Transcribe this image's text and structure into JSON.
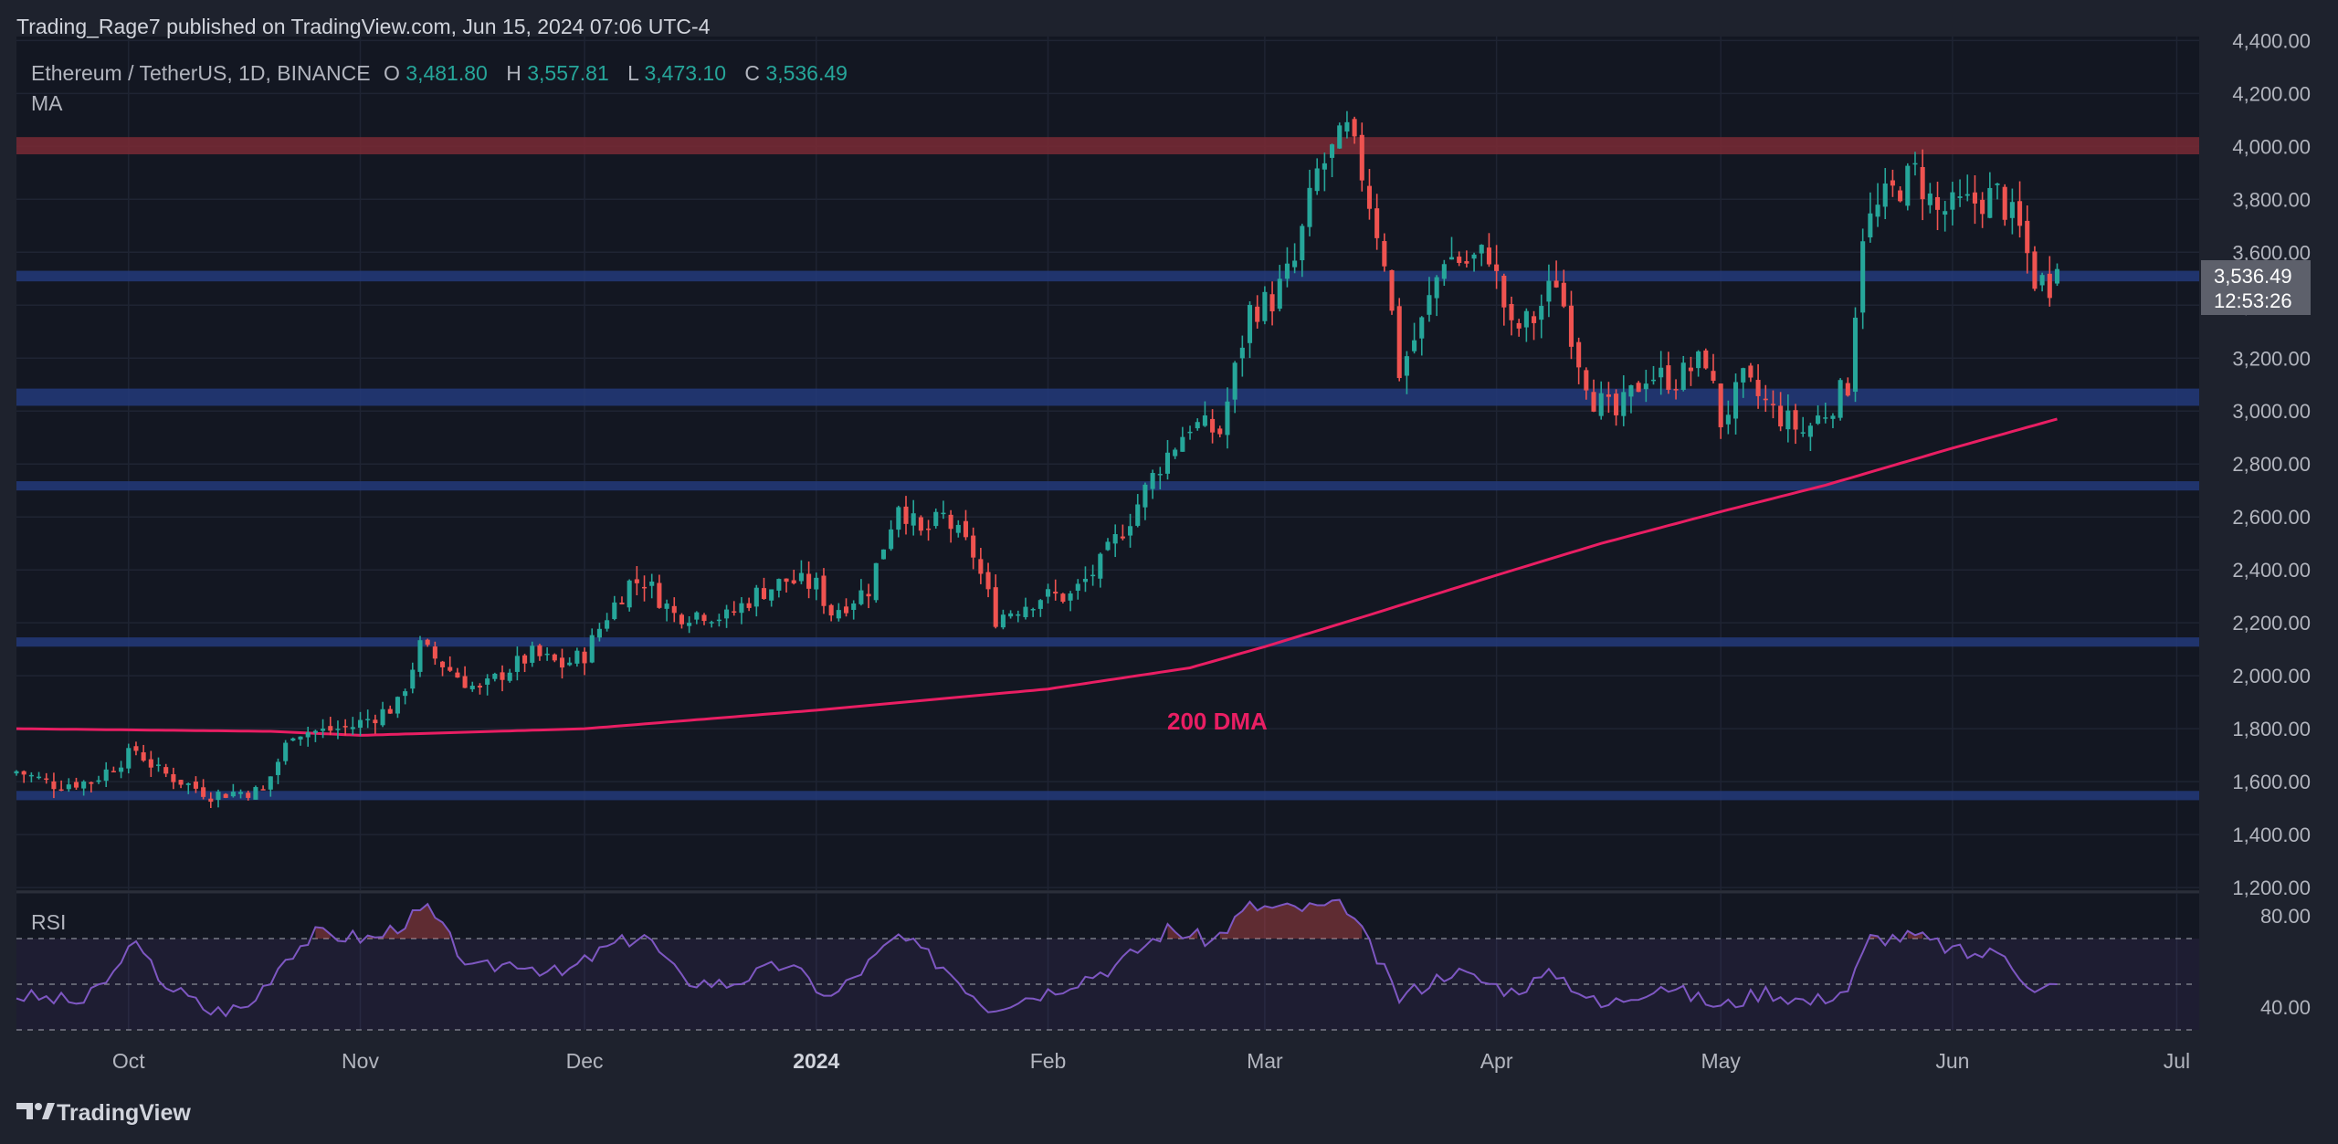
{
  "header": {
    "publisher": "Trading_Rage7 published on TradingView.com, Jun 15, 2024 07:06 UTC-4"
  },
  "legend": {
    "symbol": "Ethereum / TetherUS, 1D, BINANCE",
    "o_label": "O",
    "o_value": "3,481.80",
    "h_label": "H",
    "h_value": "3,557.81",
    "l_label": "L",
    "l_value": "3,473.10",
    "c_label": "C",
    "c_value": "3,536.49",
    "indicator": "MA"
  },
  "price_badge": {
    "price": "3,536.49",
    "countdown": "12:53:26"
  },
  "annotation": "200 DMA",
  "rsi_label": "RSI",
  "footer": {
    "brand": "TradingView"
  },
  "colors": {
    "background": "#131722",
    "frame": "#1e222d",
    "up": "#26a69a",
    "down": "#ef5350",
    "ma": "#e91e63",
    "rsi": "#7e57c2",
    "resistance_zone": "#7a2a35",
    "support_zone": "#233a7a"
  },
  "chart_data": [
    {
      "type": "candlestick",
      "title": "Ethereum / TetherUS, 1D, BINANCE",
      "x_range": [
        "2023-09-16",
        "2024-07-04"
      ],
      "x_ticks": [
        {
          "date": "2023-10-01",
          "label": "Oct"
        },
        {
          "date": "2023-11-01",
          "label": "Nov"
        },
        {
          "date": "2023-12-01",
          "label": "Dec"
        },
        {
          "date": "2024-01-01",
          "label": "2024",
          "bold": true
        },
        {
          "date": "2024-02-01",
          "label": "Feb"
        },
        {
          "date": "2024-03-01",
          "label": "Mar"
        },
        {
          "date": "2024-04-01",
          "label": "Apr"
        },
        {
          "date": "2024-05-01",
          "label": "May"
        },
        {
          "date": "2024-06-01",
          "label": "Jun"
        },
        {
          "date": "2024-07-01",
          "label": "Jul"
        }
      ],
      "y_range": [
        1190,
        4415
      ],
      "y_ticks": [
        "1,200.00",
        "1,400.00",
        "1,600.00",
        "1,800.00",
        "2,000.00",
        "2,200.00",
        "2,400.00",
        "2,600.00",
        "2,800.00",
        "3,000.00",
        "3,200.00",
        "3,400.00",
        "3,600.00",
        "3,800.00",
        "4,000.00",
        "4,200.00",
        "4,400.00"
      ],
      "y_tick_values": [
        1200,
        1400,
        1600,
        1800,
        2000,
        2200,
        2400,
        2600,
        2800,
        3000,
        3200,
        3400,
        3600,
        3800,
        4000,
        4200,
        4400
      ],
      "grid": true,
      "zones": [
        {
          "type": "resistance",
          "low": 3970,
          "high": 4035
        },
        {
          "type": "support",
          "low": 3490,
          "high": 3530
        },
        {
          "type": "support",
          "low": 3020,
          "high": 3085
        },
        {
          "type": "support",
          "low": 2700,
          "high": 2735
        },
        {
          "type": "support",
          "low": 2110,
          "high": 2145
        },
        {
          "type": "support",
          "low": 1530,
          "high": 1565
        }
      ],
      "close_waypoints": [
        [
          "2023-09-16",
          1640
        ],
        [
          "2023-09-21",
          1590
        ],
        [
          "2023-09-26",
          1600
        ],
        [
          "2023-09-30",
          1680
        ],
        [
          "2023-10-02",
          1720
        ],
        [
          "2023-10-05",
          1640
        ],
        [
          "2023-10-12",
          1550
        ],
        [
          "2023-10-15",
          1560
        ],
        [
          "2023-10-19",
          1565
        ],
        [
          "2023-10-23",
          1790
        ],
        [
          "2023-10-27",
          1790
        ],
        [
          "2023-10-31",
          1810
        ],
        [
          "2023-11-06",
          1890
        ],
        [
          "2023-11-09",
          2110
        ],
        [
          "2023-11-14",
          2000
        ],
        [
          "2023-11-17",
          1940
        ],
        [
          "2023-11-20",
          2010
        ],
        [
          "2023-11-24",
          2080
        ],
        [
          "2023-11-28",
          2040
        ],
        [
          "2023-12-01",
          2080
        ],
        [
          "2023-12-04",
          2230
        ],
        [
          "2023-12-07",
          2350
        ],
        [
          "2023-12-09",
          2360
        ],
        [
          "2023-12-13",
          2230
        ],
        [
          "2023-12-17",
          2240
        ],
        [
          "2023-12-20",
          2220
        ],
        [
          "2023-12-24",
          2310
        ],
        [
          "2023-12-28",
          2360
        ],
        [
          "2024-01-01",
          2340
        ],
        [
          "2024-01-03",
          2240
        ],
        [
          "2024-01-08",
          2330
        ],
        [
          "2024-01-12",
          2660
        ],
        [
          "2024-01-15",
          2530
        ],
        [
          "2024-01-18",
          2600
        ],
        [
          "2024-01-22",
          2460
        ],
        [
          "2024-01-25",
          2220
        ],
        [
          "2024-01-28",
          2260
        ],
        [
          "2024-01-31",
          2300
        ],
        [
          "2024-02-04",
          2300
        ],
        [
          "2024-02-08",
          2420
        ],
        [
          "2024-02-12",
          2600
        ],
        [
          "2024-02-16",
          2800
        ],
        [
          "2024-02-20",
          2950
        ],
        [
          "2024-02-24",
          2920
        ],
        [
          "2024-02-28",
          3380
        ],
        [
          "2024-03-02",
          3420
        ],
        [
          "2024-03-05",
          3560
        ],
        [
          "2024-03-08",
          3900
        ],
        [
          "2024-03-12",
          4050
        ],
        [
          "2024-03-14",
          3900
        ],
        [
          "2024-03-17",
          3580
        ],
        [
          "2024-03-19",
          3150
        ],
        [
          "2024-03-22",
          3330
        ],
        [
          "2024-03-25",
          3590
        ],
        [
          "2024-03-28",
          3560
        ],
        [
          "2024-03-31",
          3600
        ],
        [
          "2024-04-03",
          3300
        ],
        [
          "2024-04-06",
          3350
        ],
        [
          "2024-04-09",
          3500
        ],
        [
          "2024-04-12",
          3200
        ],
        [
          "2024-04-14",
          3050
        ],
        [
          "2024-04-17",
          2980
        ],
        [
          "2024-04-21",
          3140
        ],
        [
          "2024-04-25",
          3120
        ],
        [
          "2024-04-29",
          3200
        ],
        [
          "2024-05-01",
          2960
        ],
        [
          "2024-05-04",
          3110
        ],
        [
          "2024-05-08",
          3000
        ],
        [
          "2024-05-12",
          2920
        ],
        [
          "2024-05-15",
          3000
        ],
        [
          "2024-05-18",
          3100
        ],
        [
          "2024-05-20",
          3680
        ],
        [
          "2024-05-23",
          3800
        ],
        [
          "2024-05-27",
          3900
        ],
        [
          "2024-05-30",
          3750
        ],
        [
          "2024-06-03",
          3780
        ],
        [
          "2024-06-07",
          3820
        ],
        [
          "2024-06-10",
          3680
        ],
        [
          "2024-06-12",
          3500
        ],
        [
          "2024-06-14",
          3480
        ],
        [
          "2024-06-15",
          3536.49
        ]
      ],
      "last_candle": {
        "date": "2024-06-15",
        "open": 3481.8,
        "high": 3557.81,
        "low": 3473.1,
        "close": 3536.49
      },
      "ma_200": {
        "name": "200 DMA",
        "waypoints": [
          [
            "2023-09-16",
            1800
          ],
          [
            "2023-10-20",
            1790
          ],
          [
            "2023-11-01",
            1775
          ],
          [
            "2023-12-01",
            1800
          ],
          [
            "2024-01-01",
            1870
          ],
          [
            "2024-02-01",
            1950
          ],
          [
            "2024-02-20",
            2030
          ],
          [
            "2024-03-01",
            2110
          ],
          [
            "2024-03-15",
            2230
          ],
          [
            "2024-04-01",
            2380
          ],
          [
            "2024-04-15",
            2500
          ],
          [
            "2024-05-01",
            2620
          ],
          [
            "2024-05-15",
            2720
          ],
          [
            "2024-06-01",
            2860
          ],
          [
            "2024-06-15",
            2970
          ]
        ]
      }
    },
    {
      "type": "line",
      "title": "RSI",
      "y_range": [
        30,
        90
      ],
      "y_ticks": [
        "40.00",
        "80.00"
      ],
      "y_tick_values": [
        40,
        80
      ],
      "band": {
        "upper": 70,
        "lower": 30,
        "mid": 50
      },
      "waypoints": [
        [
          "2023-09-16",
          45
        ],
        [
          "2023-09-25",
          42
        ],
        [
          "2023-09-30",
          58
        ],
        [
          "2023-10-01",
          70
        ],
        [
          "2023-10-06",
          50
        ],
        [
          "2023-10-12",
          38
        ],
        [
          "2023-10-17",
          40
        ],
        [
          "2023-10-22",
          62
        ],
        [
          "2023-10-26",
          72
        ],
        [
          "2023-11-03",
          70
        ],
        [
          "2023-11-10",
          83
        ],
        [
          "2023-11-16",
          56
        ],
        [
          "2023-11-22",
          60
        ],
        [
          "2023-11-28",
          54
        ],
        [
          "2023-12-04",
          66
        ],
        [
          "2023-12-09",
          72
        ],
        [
          "2023-12-14",
          52
        ],
        [
          "2023-12-20",
          50
        ],
        [
          "2023-12-28",
          59
        ],
        [
          "2024-01-03",
          44
        ],
        [
          "2024-01-12",
          71
        ],
        [
          "2024-01-18",
          58
        ],
        [
          "2024-01-24",
          40
        ],
        [
          "2024-02-01",
          47
        ],
        [
          "2024-02-10",
          58
        ],
        [
          "2024-02-17",
          74
        ],
        [
          "2024-02-23",
          69
        ],
        [
          "2024-02-28",
          84
        ],
        [
          "2024-03-04",
          83
        ],
        [
          "2024-03-12",
          84
        ],
        [
          "2024-03-19",
          44
        ],
        [
          "2024-03-26",
          56
        ],
        [
          "2024-04-03",
          47
        ],
        [
          "2024-04-09",
          55
        ],
        [
          "2024-04-15",
          40
        ],
        [
          "2024-04-23",
          50
        ],
        [
          "2024-05-01",
          40
        ],
        [
          "2024-05-07",
          47
        ],
        [
          "2024-05-13",
          42
        ],
        [
          "2024-05-18",
          48
        ],
        [
          "2024-05-21",
          70
        ],
        [
          "2024-05-27",
          71
        ],
        [
          "2024-06-03",
          63
        ],
        [
          "2024-06-08",
          64
        ],
        [
          "2024-06-12",
          46
        ],
        [
          "2024-06-15",
          50
        ]
      ]
    }
  ]
}
